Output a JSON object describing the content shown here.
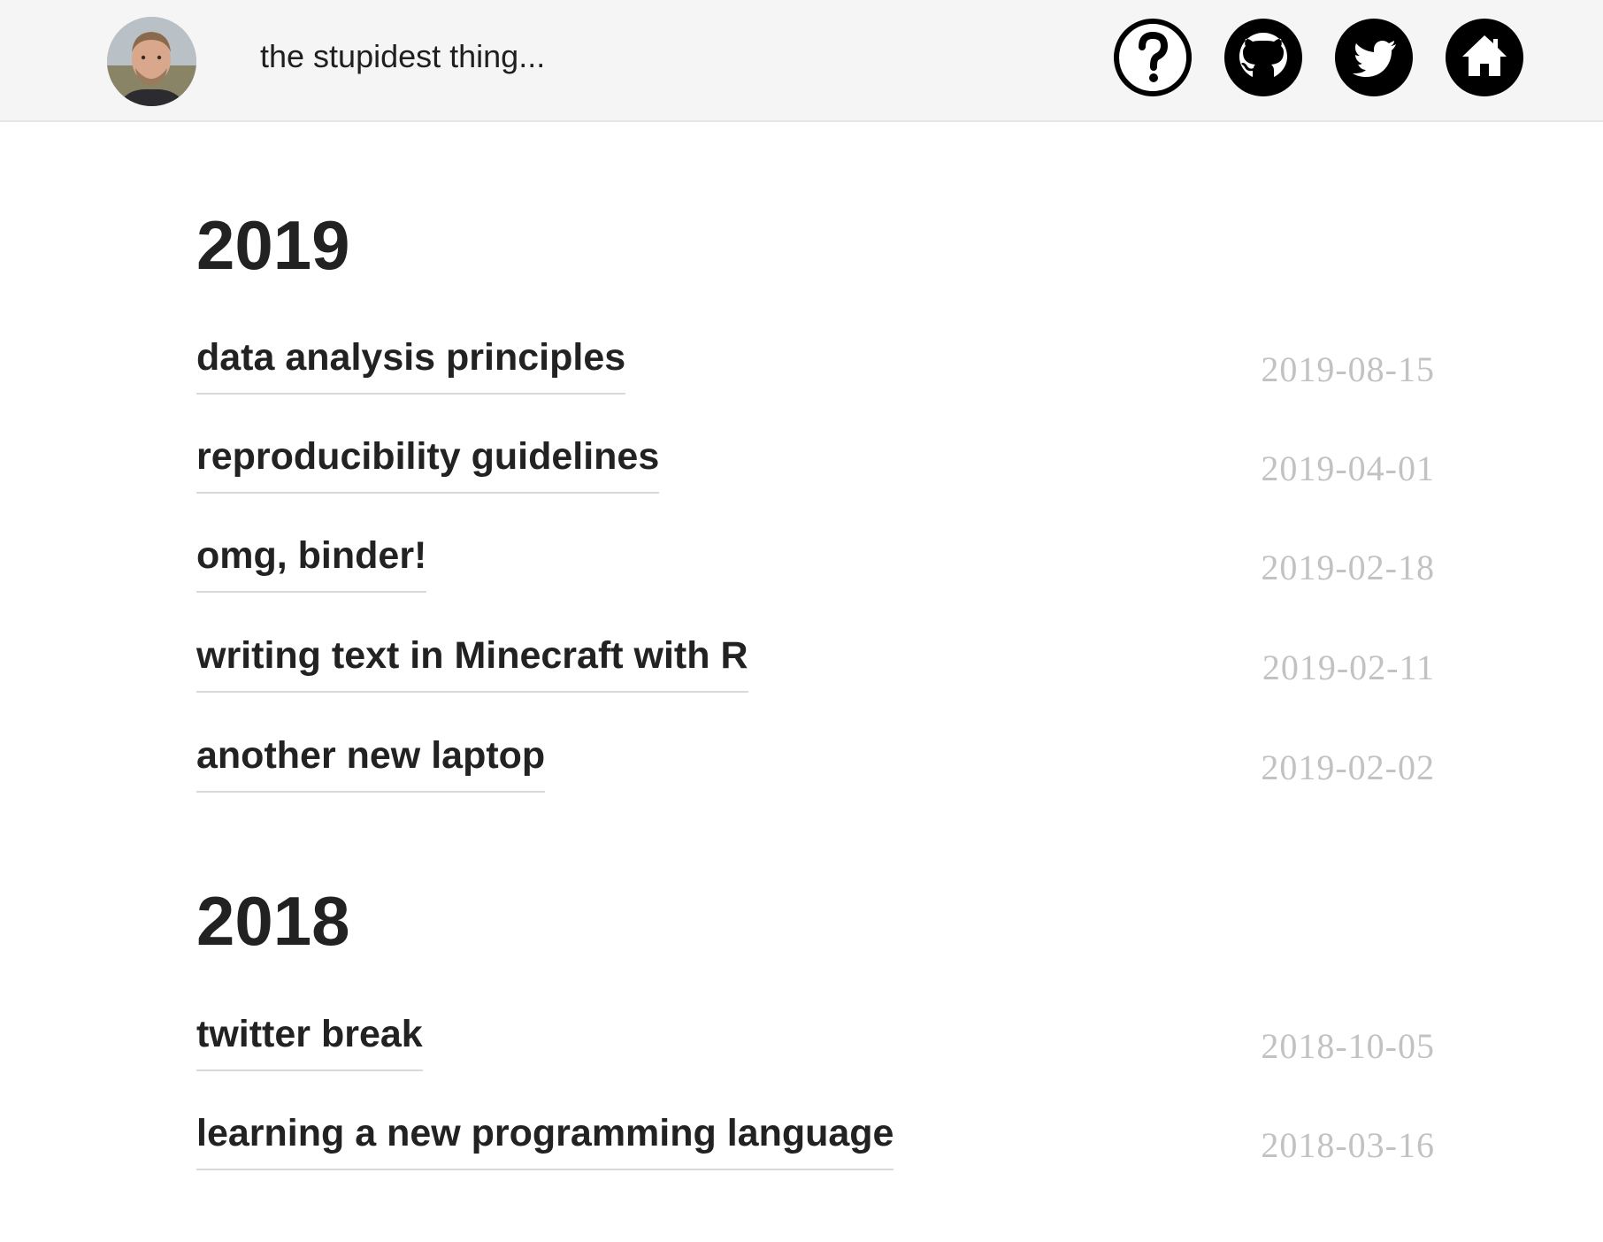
{
  "header": {
    "site_title": "the stupidest thing...",
    "avatar_alt": "author photo",
    "nav": [
      {
        "name": "about",
        "icon": "question-mark-icon"
      },
      {
        "name": "github",
        "icon": "github-icon"
      },
      {
        "name": "twitter",
        "icon": "twitter-icon"
      },
      {
        "name": "home",
        "icon": "home-icon"
      }
    ]
  },
  "years": [
    {
      "year": "2019",
      "posts": [
        {
          "title": "data analysis principles",
          "date": "2019-08-15"
        },
        {
          "title": "reproducibility guidelines",
          "date": "2019-04-01"
        },
        {
          "title": "omg, binder!",
          "date": "2019-02-18"
        },
        {
          "title": "writing text in Minecraft with R",
          "date": "2019-02-11"
        },
        {
          "title": "another new laptop",
          "date": "2019-02-02"
        }
      ]
    },
    {
      "year": "2018",
      "posts": [
        {
          "title": "twitter break",
          "date": "2018-10-05"
        },
        {
          "title": "learning a new programming language",
          "date": "2018-03-16"
        }
      ]
    }
  ],
  "colors": {
    "header_bg": "#f5f5f5",
    "text": "#222222",
    "date": "#c2c2c2",
    "underline": "#d9d9d9"
  }
}
